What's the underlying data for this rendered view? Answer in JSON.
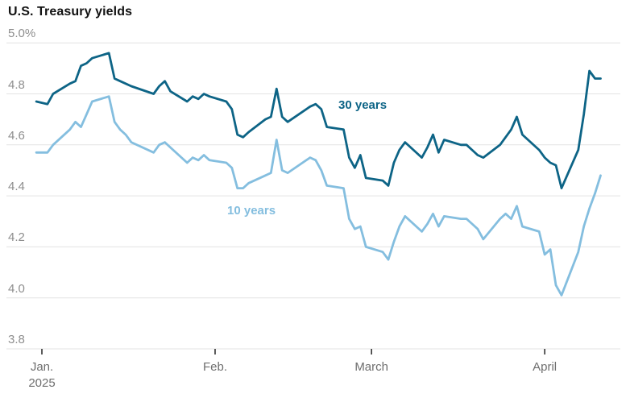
{
  "header": {
    "title": "U.S. Treasury yields"
  },
  "chart_data": {
    "type": "line",
    "title": "U.S. Treasury yields",
    "ylim": [
      3.8,
      5.0
    ],
    "grid": "horizontal",
    "legend_position": "inline-labels-on-lines",
    "colors": {
      "grid": "#e3e3e3",
      "axis_tick": "#333333",
      "series_30": "#0d6486",
      "series_10": "#84bedf"
    },
    "y_axis": {
      "ticks": [
        {
          "label": "5.0%",
          "value": 5.0
        },
        {
          "label": "4.8",
          "value": 4.8
        },
        {
          "label": "4.6",
          "value": 4.6
        },
        {
          "label": "4.4",
          "value": 4.4
        },
        {
          "label": "4.2",
          "value": 4.2
        },
        {
          "label": "4.0",
          "value": 4.0
        },
        {
          "label": "3.8",
          "value": 3.8
        }
      ]
    },
    "x_axis": {
      "year_label": "2025",
      "ticks": [
        {
          "label": "Jan.",
          "date": "1/1"
        },
        {
          "label": "Feb.",
          "date": "2/1"
        },
        {
          "label": "March",
          "date": "3/1"
        },
        {
          "label": "April",
          "date": "4/1"
        }
      ]
    },
    "dates": [
      "12/31",
      "1/2",
      "1/3",
      "1/6",
      "1/7",
      "1/8",
      "1/9",
      "1/10",
      "1/13",
      "1/14",
      "1/15",
      "1/16",
      "1/17",
      "1/21",
      "1/22",
      "1/23",
      "1/24",
      "1/27",
      "1/28",
      "1/29",
      "1/30",
      "1/31",
      "2/3",
      "2/4",
      "2/5",
      "2/6",
      "2/7",
      "2/10",
      "2/11",
      "2/12",
      "2/13",
      "2/14",
      "2/18",
      "2/19",
      "2/20",
      "2/21",
      "2/24",
      "2/25",
      "2/26",
      "2/27",
      "2/28",
      "3/3",
      "3/4",
      "3/5",
      "3/6",
      "3/7",
      "3/10",
      "3/11",
      "3/12",
      "3/13",
      "3/14",
      "3/17",
      "3/18",
      "3/19",
      "3/20",
      "3/21",
      "3/24",
      "3/25",
      "3/26",
      "3/27",
      "3/28",
      "3/31",
      "4/1",
      "4/2",
      "4/3",
      "4/4",
      "4/7",
      "4/8",
      "4/9",
      "4/10",
      "4/11"
    ],
    "series": [
      {
        "name": "30 years",
        "color": "#0d6486",
        "values": [
          4.77,
          4.76,
          4.8,
          4.84,
          4.85,
          4.91,
          4.92,
          4.94,
          4.96,
          4.86,
          4.85,
          4.84,
          4.83,
          4.8,
          4.83,
          4.85,
          4.81,
          4.77,
          4.79,
          4.78,
          4.8,
          4.79,
          4.77,
          4.74,
          4.64,
          4.63,
          4.65,
          4.7,
          4.71,
          4.82,
          4.71,
          4.69,
          4.75,
          4.76,
          4.74,
          4.67,
          4.66,
          4.55,
          4.51,
          4.56,
          4.47,
          4.46,
          4.44,
          4.53,
          4.58,
          4.61,
          4.55,
          4.59,
          4.64,
          4.57,
          4.62,
          4.6,
          4.6,
          4.58,
          4.56,
          4.55,
          4.6,
          4.63,
          4.66,
          4.71,
          4.64,
          4.58,
          4.55,
          4.53,
          4.52,
          4.43,
          4.58,
          4.72,
          4.89,
          4.86,
          4.86
        ]
      },
      {
        "name": "10 years",
        "color": "#84bedf",
        "values": [
          4.57,
          4.57,
          4.6,
          4.66,
          4.69,
          4.67,
          4.72,
          4.77,
          4.79,
          4.69,
          4.66,
          4.64,
          4.61,
          4.57,
          4.6,
          4.61,
          4.59,
          4.53,
          4.55,
          4.54,
          4.56,
          4.54,
          4.53,
          4.51,
          4.43,
          4.43,
          4.45,
          4.48,
          4.49,
          4.62,
          4.5,
          4.49,
          4.55,
          4.54,
          4.5,
          4.44,
          4.43,
          4.31,
          4.27,
          4.28,
          4.2,
          4.18,
          4.15,
          4.22,
          4.28,
          4.32,
          4.26,
          4.29,
          4.33,
          4.28,
          4.32,
          4.31,
          4.31,
          4.29,
          4.27,
          4.23,
          4.31,
          4.33,
          4.31,
          4.36,
          4.28,
          4.26,
          4.17,
          4.19,
          4.05,
          4.01,
          4.18,
          4.28,
          4.35,
          4.41,
          4.48
        ]
      }
    ]
  }
}
